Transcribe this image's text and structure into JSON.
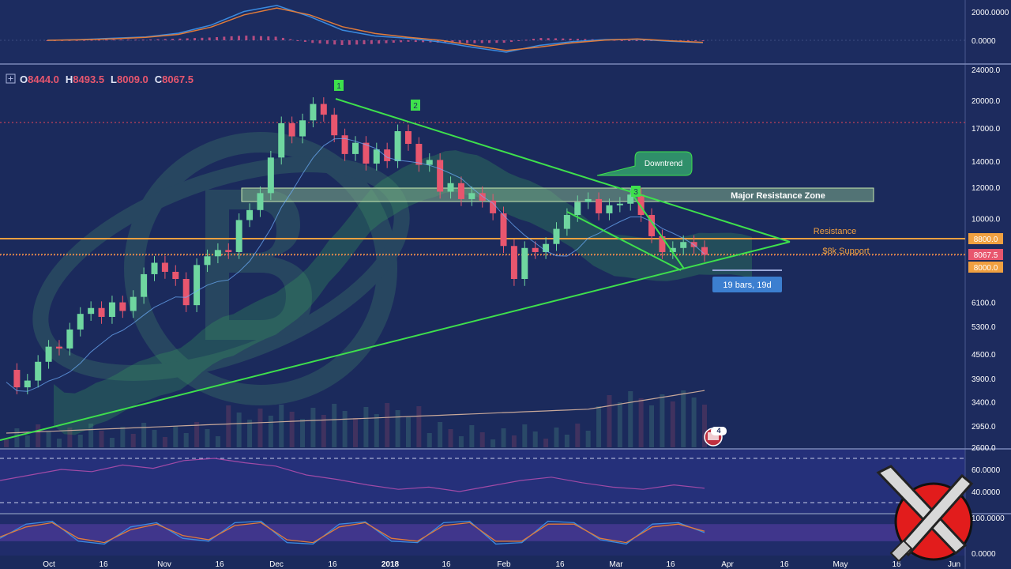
{
  "ohlc": {
    "o_label": "O",
    "o_value": "8444.0",
    "h_label": "H",
    "h_value": "8493.5",
    "l_label": "L",
    "l_value": "8009.0",
    "c_label": "C",
    "c_value": "8067.5"
  },
  "colors": {
    "background": "#1b2a5c",
    "up_candle": "#6fd6a0",
    "down_candle": "#e8566e",
    "trendline": "#3ee04c",
    "orange_line": "#f0a040",
    "macd_line": "#3a8be0",
    "signal_line": "#e07b3a",
    "histogram": "#d9558a",
    "rsi_line": "#a04aa6",
    "stoch_band": "#5b3fa8",
    "label_box": "#3c7fd0",
    "cloud": "#39a85a"
  },
  "icons": {
    "expand": "plus-box-icon",
    "bitcoin_watermark": "bitcoin-logo-icon",
    "news_flag": "news-flag-icon",
    "brand": "crossed-swords-logo"
  },
  "chart_data": [
    {
      "type": "line",
      "panel": "MACD",
      "y_ticks": [
        "2000.0000",
        "0.0000"
      ],
      "series": [
        {
          "values": [
            0,
            40,
            120,
            200,
            420,
            900,
            1700,
            2050,
            1400,
            600,
            250,
            120,
            -100,
            -420,
            -700,
            -300,
            -80,
            40,
            60,
            -60,
            -140
          ]
        },
        {
          "values": [
            0,
            30,
            90,
            170,
            350,
            780,
            1500,
            1900,
            1500,
            800,
            400,
            180,
            0,
            -300,
            -600,
            -400,
            -150,
            10,
            80,
            -30,
            -120
          ]
        }
      ]
    },
    {
      "type": "candlestick",
      "panel": "price",
      "y_scale": "log",
      "ylim": [
        2600,
        24000
      ],
      "y_ticks": [
        "24000.0",
        "20000.0",
        "17000.0",
        "14000.0",
        "12000.0",
        "10000.0",
        "8800.0",
        "8000.0",
        "6100.0",
        "5300.0",
        "4500.0",
        "3900.0",
        "3400.0",
        "2950.0",
        "2600.0"
      ],
      "x_ticks": [
        "Oct",
        "16",
        "Nov",
        "16",
        "Dec",
        "16",
        "2018",
        "16",
        "Feb",
        "16",
        "Mar",
        "16",
        "Apr",
        "16",
        "May",
        "16",
        "Jun"
      ],
      "price_markers": {
        "resistance": "8800.0",
        "last": "8067.5",
        "support": "8000.0"
      },
      "annotations": {
        "point_1": "1",
        "point_2": "2",
        "point_3": "3",
        "downtrend": "Downtrend",
        "zone": "Major Resistance Zone",
        "resistance": "Resistance",
        "support": "$8k Support",
        "bars": "19 bars, 19d",
        "news_count": "4"
      },
      "closes": [
        4100,
        3700,
        3850,
        4300,
        4700,
        4650,
        5200,
        5700,
        5900,
        5600,
        6100,
        5800,
        6300,
        7200,
        7700,
        7300,
        7000,
        6000,
        7600,
        8000,
        8300,
        8200,
        9900,
        10500,
        11600,
        14300,
        17500,
        16200,
        17800,
        19600,
        18400,
        16300,
        14600,
        15600,
        13800,
        15000,
        14000,
        16700,
        15500,
        13700,
        14100,
        11700,
        12300,
        11200,
        11600,
        11100,
        10300,
        8500,
        7000,
        8400,
        8200,
        8600,
        9400,
        10200,
        11000,
        11200,
        10300,
        10800,
        10900,
        11500,
        10200,
        9000,
        8200,
        8400,
        8700,
        8444,
        8067
      ]
    },
    {
      "type": "line",
      "panel": "RSI",
      "y_ticks": [
        "60.0000",
        "40.0000"
      ],
      "series": [
        {
          "values": [
            50,
            55,
            60,
            58,
            64,
            61,
            68,
            70,
            66,
            63,
            55,
            51,
            46,
            42,
            44,
            40,
            45,
            50,
            53,
            48,
            44,
            42,
            46,
            43
          ]
        }
      ]
    },
    {
      "type": "line",
      "panel": "Stochastic",
      "y_ticks": [
        "100.0000",
        "0.0000"
      ],
      "series": [
        {
          "values": [
            30,
            80,
            90,
            20,
            10,
            70,
            85,
            30,
            20,
            85,
            90,
            15,
            10,
            80,
            88,
            20,
            15,
            85,
            90,
            10,
            15,
            90,
            85,
            25,
            10,
            80,
            85,
            50
          ]
        },
        {
          "values": [
            35,
            70,
            85,
            30,
            15,
            60,
            80,
            40,
            25,
            75,
            85,
            25,
            15,
            70,
            85,
            30,
            20,
            75,
            85,
            20,
            20,
            80,
            80,
            30,
            15,
            70,
            80,
            55
          ]
        }
      ]
    }
  ]
}
